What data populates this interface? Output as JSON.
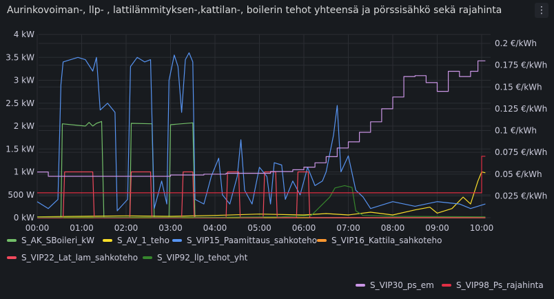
{
  "panel": {
    "title": "Aurinkovoiman-, llp- , lattilämmityksen-,kattilan-, boilerin tehot yhteensä ja pörssisähkö sekä rajahinta",
    "menu_icon": "kebab-menu-icon"
  },
  "colors": {
    "background": "#181b1f",
    "grid": "#2b2e33",
    "text": "#ccccdc"
  },
  "chart_data": {
    "type": "line",
    "x_tick_labels": [
      "00:00",
      "01:00",
      "02:00",
      "03:00",
      "04:00",
      "05:00",
      "06:00",
      "07:00",
      "08:00",
      "09:00",
      "10:00"
    ],
    "xlim": [
      "00:00",
      "10:05"
    ],
    "y_left": {
      "ticks": [
        0,
        500,
        1000,
        1500,
        2000,
        2500,
        3000,
        3500,
        4000
      ],
      "tick_labels": [
        "0 kW",
        "500 W",
        "1 kW",
        "1.5 kW",
        "2 kW",
        "2.5 kW",
        "3 kW",
        "3.5 kW",
        "4 kW"
      ],
      "range": [
        0,
        4000
      ],
      "unit": "W"
    },
    "y_right": {
      "ticks": [
        0.025,
        0.05,
        0.075,
        0.1,
        0.125,
        0.15,
        0.175,
        0.2
      ],
      "tick_labels": [
        "0.025 €/kWh",
        "0.05 €/kWh",
        "0.075 €/kWh",
        "0.1 €/kWh",
        "0.125 €/kWh",
        "0.15 €/kWh",
        "0.175 €/kWh",
        "0.2 €/kWh"
      ],
      "range": [
        0,
        0.2
      ]
    },
    "grid": true,
    "legend_position": "bottom",
    "series": [
      {
        "name": "S_AK_SBoileri_kW",
        "color": "#73bf69",
        "axis": "left",
        "points": [
          [
            "00:00",
            0
          ],
          [
            "00:32",
            0
          ],
          [
            "00:34",
            2050
          ],
          [
            "01:05",
            2000
          ],
          [
            "01:10",
            2080
          ],
          [
            "01:15",
            2000
          ],
          [
            "01:20",
            2060
          ],
          [
            "01:27",
            2100
          ],
          [
            "01:30",
            0
          ],
          [
            "02:05",
            0
          ],
          [
            "02:07",
            2060
          ],
          [
            "02:35",
            2050
          ],
          [
            "02:38",
            0
          ],
          [
            "02:58",
            0
          ],
          [
            "03:00",
            2030
          ],
          [
            "03:30",
            2070
          ],
          [
            "03:33",
            0
          ],
          [
            "10:05",
            0
          ]
        ]
      },
      {
        "name": "S_AV_1_teho",
        "color": "#fade2a",
        "axis": "left",
        "points": [
          [
            "00:00",
            20
          ],
          [
            "01:00",
            30
          ],
          [
            "02:00",
            40
          ],
          [
            "03:00",
            30
          ],
          [
            "04:00",
            50
          ],
          [
            "05:00",
            80
          ],
          [
            "06:00",
            60
          ],
          [
            "06:30",
            90
          ],
          [
            "07:00",
            60
          ],
          [
            "07:30",
            120
          ],
          [
            "08:00",
            60
          ],
          [
            "08:30",
            170
          ],
          [
            "08:50",
            230
          ],
          [
            "09:00",
            100
          ],
          [
            "09:20",
            200
          ],
          [
            "09:35",
            450
          ],
          [
            "09:45",
            300
          ],
          [
            "09:55",
            800
          ],
          [
            "10:00",
            1000
          ],
          [
            "10:05",
            980
          ]
        ]
      },
      {
        "name": "S_VIP15_Paamittaus_sahkoteho",
        "color": "#5794f2",
        "axis": "left",
        "points": [
          [
            "00:00",
            350
          ],
          [
            "00:15",
            200
          ],
          [
            "00:28",
            400
          ],
          [
            "00:32",
            2900
          ],
          [
            "00:35",
            3400
          ],
          [
            "00:45",
            3450
          ],
          [
            "00:55",
            3500
          ],
          [
            "01:05",
            3450
          ],
          [
            "01:15",
            3200
          ],
          [
            "01:20",
            3500
          ],
          [
            "01:25",
            2350
          ],
          [
            "01:35",
            2500
          ],
          [
            "01:45",
            2300
          ],
          [
            "01:48",
            150
          ],
          [
            "02:02",
            400
          ],
          [
            "02:06",
            3300
          ],
          [
            "02:15",
            3500
          ],
          [
            "02:25",
            3400
          ],
          [
            "02:33",
            3450
          ],
          [
            "02:38",
            200
          ],
          [
            "02:48",
            800
          ],
          [
            "02:55",
            300
          ],
          [
            "02:58",
            3000
          ],
          [
            "03:05",
            3550
          ],
          [
            "03:10",
            3300
          ],
          [
            "03:15",
            2300
          ],
          [
            "03:20",
            3450
          ],
          [
            "03:25",
            3600
          ],
          [
            "03:30",
            3400
          ],
          [
            "03:33",
            400
          ],
          [
            "03:45",
            300
          ],
          [
            "03:55",
            900
          ],
          [
            "04:05",
            1300
          ],
          [
            "04:10",
            500
          ],
          [
            "04:20",
            300
          ],
          [
            "04:30",
            900
          ],
          [
            "04:35",
            1700
          ],
          [
            "04:40",
            600
          ],
          [
            "04:50",
            300
          ],
          [
            "05:00",
            1100
          ],
          [
            "05:10",
            900
          ],
          [
            "05:15",
            300
          ],
          [
            "05:20",
            1200
          ],
          [
            "05:30",
            1150
          ],
          [
            "05:35",
            400
          ],
          [
            "05:45",
            800
          ],
          [
            "05:55",
            500
          ],
          [
            "06:05",
            1100
          ],
          [
            "06:15",
            700
          ],
          [
            "06:25",
            800
          ],
          [
            "06:30",
            1000
          ],
          [
            "06:40",
            1800
          ],
          [
            "06:45",
            2450
          ],
          [
            "06:50",
            1000
          ],
          [
            "07:00",
            1350
          ],
          [
            "07:10",
            600
          ],
          [
            "07:20",
            450
          ],
          [
            "07:30",
            200
          ],
          [
            "08:00",
            350
          ],
          [
            "08:30",
            250
          ],
          [
            "09:00",
            350
          ],
          [
            "09:30",
            300
          ],
          [
            "09:45",
            200
          ],
          [
            "10:05",
            300
          ]
        ]
      },
      {
        "name": "S_VIP16_Kattila_sahkoteho",
        "color": "#ff9830",
        "axis": "left",
        "points": [
          [
            "00:00",
            0
          ],
          [
            "10:05",
            0
          ]
        ]
      },
      {
        "name": "S_VIP22_Lat_lam_sahkoteho",
        "color": "#f2495c",
        "axis": "left",
        "points": [
          [
            "00:00",
            0
          ],
          [
            "00:35",
            0
          ],
          [
            "00:37",
            1000
          ],
          [
            "01:15",
            1000
          ],
          [
            "01:17",
            0
          ],
          [
            "02:05",
            0
          ],
          [
            "02:07",
            1000
          ],
          [
            "02:33",
            1000
          ],
          [
            "02:35",
            0
          ],
          [
            "03:15",
            0
          ],
          [
            "03:17",
            1000
          ],
          [
            "03:30",
            1000
          ],
          [
            "03:32",
            0
          ],
          [
            "04:15",
            0
          ],
          [
            "04:17",
            1000
          ],
          [
            "04:32",
            1000
          ],
          [
            "04:34",
            0
          ],
          [
            "05:05",
            0
          ],
          [
            "05:07",
            1000
          ],
          [
            "05:22",
            1000
          ],
          [
            "05:24",
            0
          ],
          [
            "05:50",
            0
          ],
          [
            "05:52",
            1000
          ],
          [
            "06:06",
            1000
          ],
          [
            "06:08",
            0
          ],
          [
            "10:05",
            0
          ]
        ]
      },
      {
        "name": "S_VIP92_llp_tehot_yht",
        "color": "#37872d",
        "axis": "left",
        "points": [
          [
            "00:00",
            10
          ],
          [
            "04:00",
            10
          ],
          [
            "05:30",
            20
          ],
          [
            "06:10",
            50
          ],
          [
            "06:35",
            450
          ],
          [
            "06:42",
            650
          ],
          [
            "06:55",
            700
          ],
          [
            "07:05",
            660
          ],
          [
            "07:10",
            150
          ],
          [
            "07:20",
            50
          ],
          [
            "08:00",
            30
          ],
          [
            "10:05",
            20
          ]
        ]
      },
      {
        "name": "S_VIP30_ps_em",
        "color": "#ca95e5",
        "axis": "right",
        "points": [
          [
            "00:00",
            0.0525
          ],
          [
            "00:15",
            0.0525
          ],
          [
            "00:15",
            0.0475
          ],
          [
            "01:00",
            0.0475
          ],
          [
            "02:00",
            0.0475
          ],
          [
            "03:00",
            0.0475
          ],
          [
            "03:00",
            0.049
          ],
          [
            "03:45",
            0.049
          ],
          [
            "03:45",
            0.05
          ],
          [
            "04:15",
            0.05
          ],
          [
            "04:15",
            0.051
          ],
          [
            "05:15",
            0.051
          ],
          [
            "05:15",
            0.053
          ],
          [
            "05:45",
            0.053
          ],
          [
            "05:45",
            0.055
          ],
          [
            "06:00",
            0.055
          ],
          [
            "06:00",
            0.058
          ],
          [
            "06:15",
            0.058
          ],
          [
            "06:15",
            0.063
          ],
          [
            "06:30",
            0.063
          ],
          [
            "06:30",
            0.07
          ],
          [
            "06:45",
            0.07
          ],
          [
            "06:45",
            0.08
          ],
          [
            "07:00",
            0.08
          ],
          [
            "07:00",
            0.087
          ],
          [
            "07:15",
            0.087
          ],
          [
            "07:15",
            0.098
          ],
          [
            "07:30",
            0.098
          ],
          [
            "07:30",
            0.11
          ],
          [
            "07:45",
            0.11
          ],
          [
            "07:45",
            0.125
          ],
          [
            "08:00",
            0.125
          ],
          [
            "08:00",
            0.1385
          ],
          [
            "08:15",
            0.1385
          ],
          [
            "08:15",
            0.162
          ],
          [
            "08:30",
            0.162
          ],
          [
            "08:30",
            0.163
          ],
          [
            "08:45",
            0.163
          ],
          [
            "08:45",
            0.155
          ],
          [
            "09:00",
            0.155
          ],
          [
            "09:00",
            0.145
          ],
          [
            "09:15",
            0.145
          ],
          [
            "09:15",
            0.168
          ],
          [
            "09:30",
            0.168
          ],
          [
            "09:30",
            0.162
          ],
          [
            "09:45",
            0.162
          ],
          [
            "09:45",
            0.168
          ],
          [
            "09:55",
            0.168
          ],
          [
            "09:55",
            0.18
          ],
          [
            "10:05",
            0.18
          ]
        ]
      },
      {
        "name": "S_VIP98_Ps_rajahinta",
        "color": "#e02f44",
        "axis": "right",
        "points": [
          [
            "00:00",
            0.0285
          ],
          [
            "10:00",
            0.0285
          ],
          [
            "10:00",
            0.0705
          ],
          [
            "10:05",
            0.0705
          ]
        ]
      }
    ],
    "legend_rows": [
      [
        "S_AK_SBoileri_kW",
        "S_AV_1_teho",
        "S_VIP15_Paamittaus_sahkoteho",
        "S_VIP16_Kattila_sahkoteho"
      ],
      [
        "S_VIP22_Lat_lam_sahkoteho",
        "S_VIP92_llp_tehot_yht"
      ],
      [
        "S_VIP30_ps_em",
        "S_VIP98_Ps_rajahinta"
      ]
    ]
  }
}
